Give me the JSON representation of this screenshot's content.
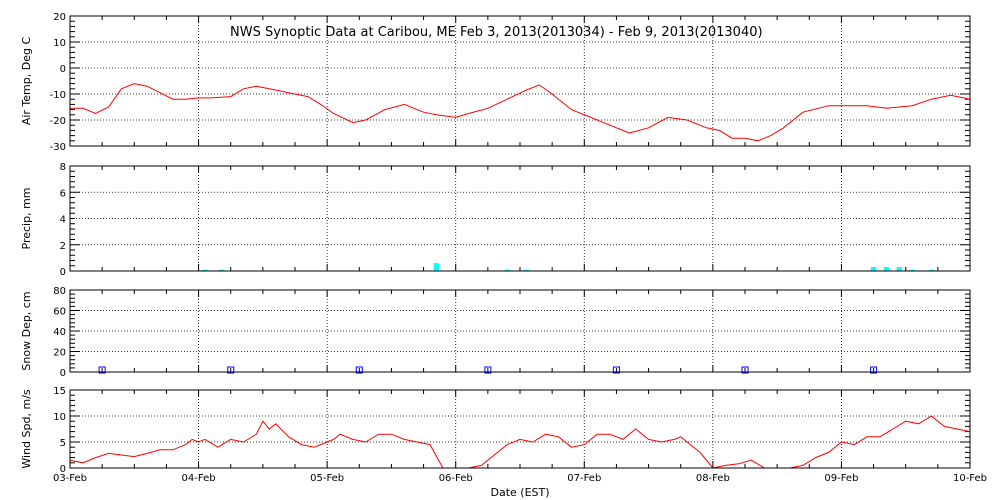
{
  "chart_data": {
    "type": "multi-panel time series",
    "title": "NWS Synoptic Data at Caribou, ME   Feb  3, 2013(2013034) - Feb  9, 2013(2013040)",
    "xlabel": "Date (EST)",
    "x_ticks": [
      "03-Feb",
      "04-Feb",
      "05-Feb",
      "06-Feb",
      "07-Feb",
      "08-Feb",
      "09-Feb",
      "10-Feb"
    ],
    "xlim": [
      0,
      7
    ],
    "grid": true,
    "panels": [
      {
        "type": "line",
        "ylabel": "Air Temp, Deg C",
        "ylim": [
          -30,
          20
        ],
        "yticks": [
          -30,
          -20,
          -10,
          0,
          10,
          20
        ],
        "color": "#ff0000",
        "series": {
          "x": [
            0,
            0.1,
            0.2,
            0.3,
            0.4,
            0.5,
            0.6,
            0.7,
            0.8,
            0.9,
            1.0,
            1.1,
            1.25,
            1.35,
            1.45,
            1.55,
            1.7,
            1.85,
            1.95,
            2.05,
            2.2,
            2.3,
            2.45,
            2.6,
            2.75,
            2.85,
            3.0,
            3.1,
            3.25,
            3.4,
            3.55,
            3.65,
            3.75,
            3.9,
            4.05,
            4.2,
            4.35,
            4.5,
            4.65,
            4.8,
            4.95,
            5.05,
            5.15,
            5.25,
            5.35,
            5.45,
            5.55,
            5.7,
            5.9,
            6.1,
            6.2,
            6.35,
            6.55,
            6.7,
            6.85,
            7.0
          ],
          "y": [
            -15.5,
            -15.5,
            -17.5,
            -15,
            -8,
            -6,
            -7,
            -9.5,
            -12,
            -12,
            -11.5,
            -11.5,
            -11,
            -8,
            -7,
            -8,
            -9.5,
            -11,
            -14,
            -17.5,
            -21,
            -20,
            -16,
            -14,
            -17,
            -18,
            -19,
            -17.5,
            -15.5,
            -12,
            -8.5,
            -6.5,
            -10,
            -16,
            -19,
            -22,
            -25,
            -23,
            -19,
            -20,
            -23,
            -24,
            -27,
            -27,
            -28,
            -26,
            -23,
            -17,
            -14.5,
            -14.5,
            -14.5,
            -15.5,
            -14.5,
            -12,
            -10.5,
            -12
          ]
        }
      },
      {
        "type": "bar",
        "ylabel": "Precip, mm",
        "ylim": [
          0,
          8
        ],
        "yticks": [
          0,
          2,
          4,
          6,
          8
        ],
        "color": "#00ffff",
        "series": {
          "x": [
            1.05,
            1.18,
            2.85,
            3.4,
            3.55,
            6.25,
            6.35,
            6.45,
            6.55,
            6.7
          ],
          "values": [
            0.1,
            0.1,
            0.6,
            0.1,
            0.1,
            0.3,
            0.3,
            0.3,
            0.1,
            0.1
          ]
        }
      },
      {
        "type": "scatter",
        "ylabel": "Snow Dep, cm",
        "ylim": [
          0,
          80
        ],
        "yticks": [
          0,
          20,
          40,
          60,
          80
        ],
        "color": "#0000ff",
        "series": {
          "x": [
            0.25,
            1.25,
            2.25,
            3.25,
            4.25,
            5.25,
            6.25
          ],
          "y": [
            0,
            0,
            0,
            0,
            0,
            0,
            0
          ]
        }
      },
      {
        "type": "line",
        "ylabel": "Wind Spd, m/s",
        "ylim": [
          0,
          15
        ],
        "yticks": [
          0,
          5,
          10,
          15
        ],
        "color": "#ff0000",
        "series": {
          "x": [
            0,
            0.1,
            0.2,
            0.3,
            0.4,
            0.5,
            0.6,
            0.7,
            0.8,
            0.9,
            0.95,
            1.0,
            1.05,
            1.15,
            1.25,
            1.35,
            1.45,
            1.5,
            1.55,
            1.6,
            1.7,
            1.8,
            1.9,
            2.0,
            2.05,
            2.1,
            2.2,
            2.3,
            2.4,
            2.5,
            2.6,
            2.7,
            2.8,
            2.9,
            3.0,
            3.1,
            3.2,
            3.3,
            3.4,
            3.5,
            3.6,
            3.7,
            3.8,
            3.9,
            4.0,
            4.1,
            4.2,
            4.3,
            4.4,
            4.5,
            4.6,
            4.7,
            4.75,
            4.8,
            4.9,
            5.0,
            5.1,
            5.2,
            5.3,
            5.4,
            5.5,
            5.6,
            5.7,
            5.8,
            5.9,
            6.0,
            6.1,
            6.2,
            6.3,
            6.4,
            6.5,
            6.6,
            6.7,
            6.8,
            6.9,
            7.0
          ],
          "y": [
            1.5,
            1,
            2,
            2.8,
            2.5,
            2.2,
            2.8,
            3.5,
            3.5,
            4.5,
            5.5,
            5,
            5.5,
            4,
            5.5,
            5,
            6.5,
            9,
            7.5,
            8.5,
            6,
            4.5,
            4,
            5,
            5.5,
            6.5,
            5.5,
            5,
            6.5,
            6.5,
            5.5,
            5,
            4.5,
            0,
            0,
            0,
            0.5,
            2.5,
            4.5,
            5.5,
            5,
            6.5,
            6,
            4,
            4.5,
            6.5,
            6.5,
            5.5,
            7.5,
            5.5,
            5,
            5.5,
            6,
            5,
            3,
            0,
            0.5,
            0.8,
            1.5,
            0,
            0,
            0,
            0.5,
            2,
            3,
            5,
            4.5,
            6,
            6,
            7.5,
            9,
            8.5,
            10,
            8,
            7.5,
            7
          ]
        }
      }
    ]
  }
}
